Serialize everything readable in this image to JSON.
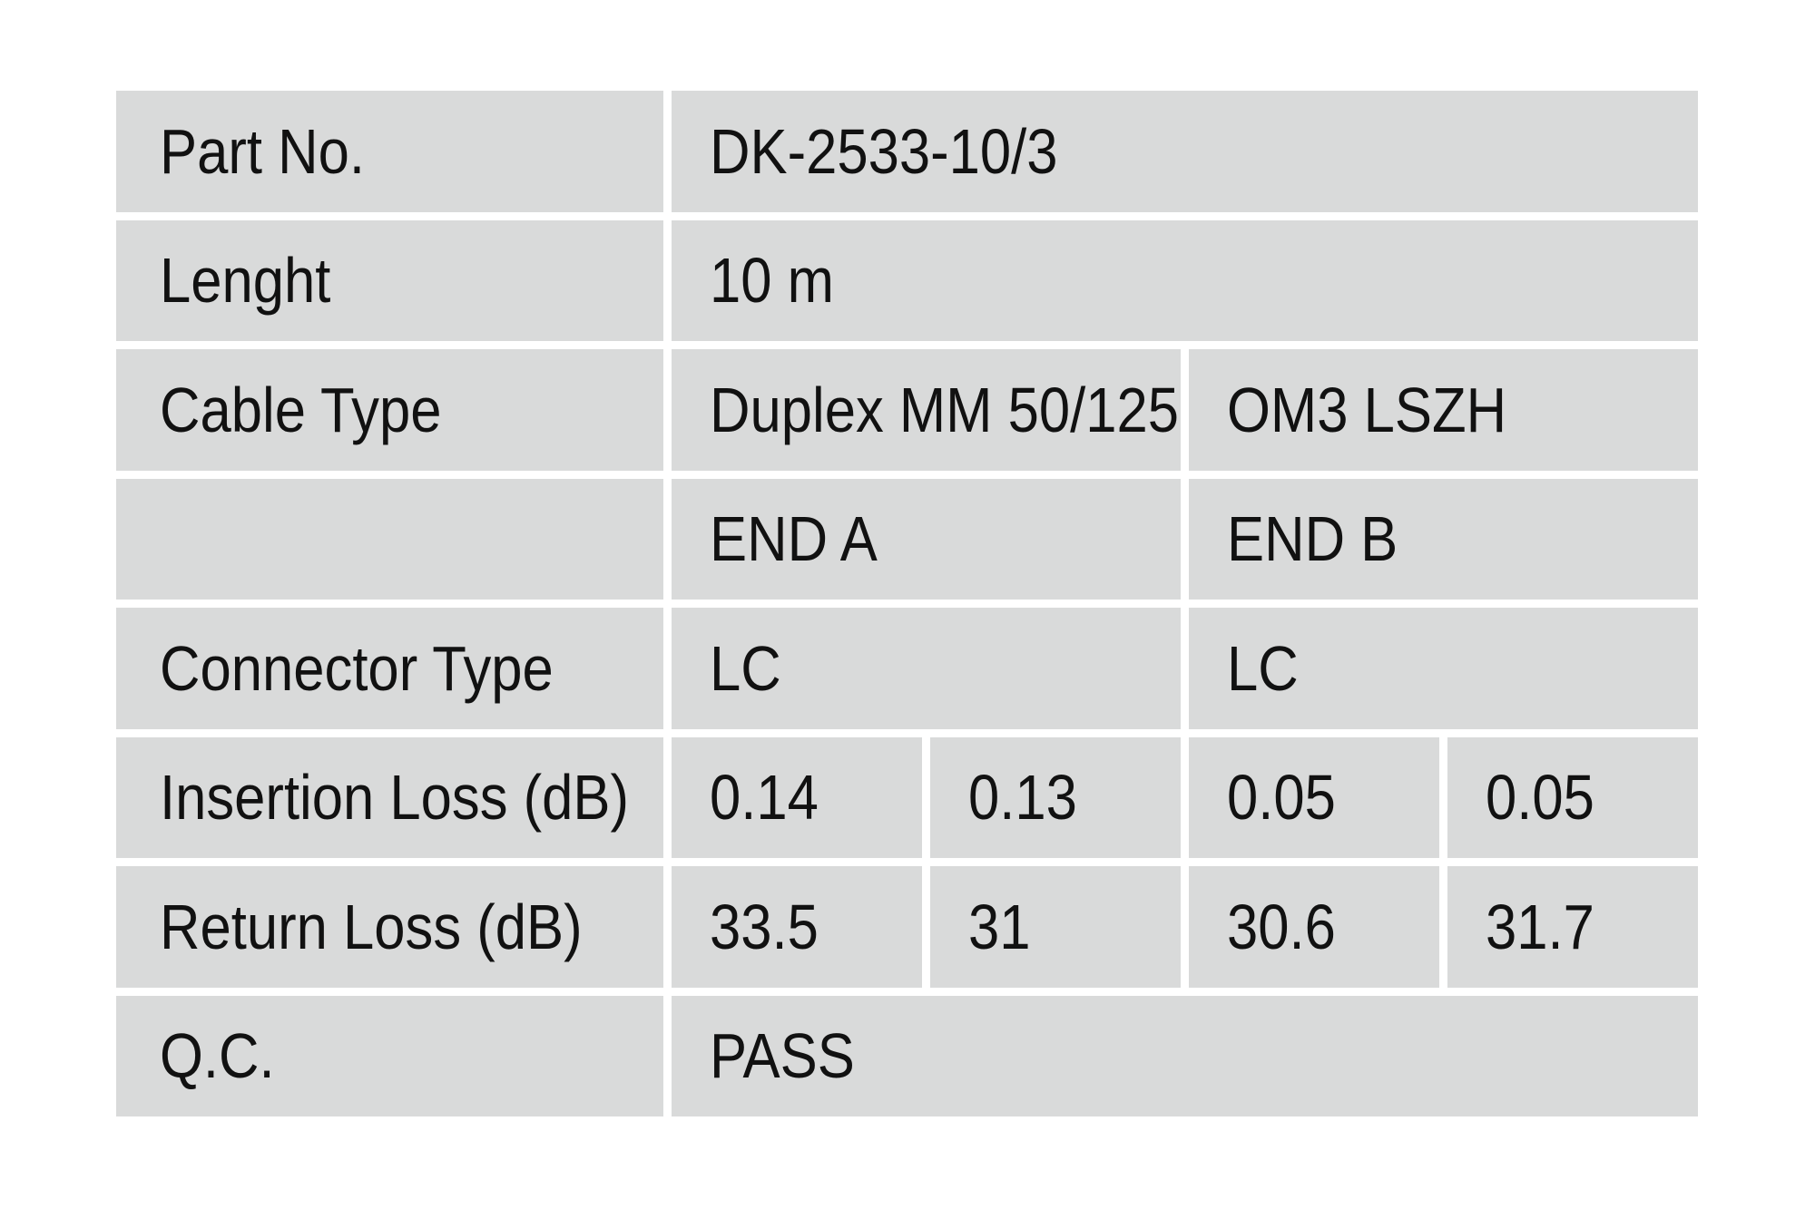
{
  "colors": {
    "background": "#ffffff",
    "cell_fill": "#d9dada",
    "text": "#111111"
  },
  "table": {
    "columns": 5,
    "rows": [
      {
        "label": "Part No.",
        "cells": [
          {
            "text": "DK-2533-10/3",
            "span": 4
          }
        ]
      },
      {
        "label": "Lenght",
        "cells": [
          {
            "text": "10 m",
            "span": 4
          }
        ]
      },
      {
        "label": "Cable Type",
        "cells": [
          {
            "text": "Duplex MM 50/125",
            "span": 2
          },
          {
            "text": "OM3 LSZH",
            "span": 2
          }
        ]
      },
      {
        "label": "",
        "cells": [
          {
            "text": "END A",
            "span": 2
          },
          {
            "text": "END B",
            "span": 2
          }
        ]
      },
      {
        "label": "Connector Type",
        "cells": [
          {
            "text": "LC",
            "span": 2
          },
          {
            "text": "LC",
            "span": 2
          }
        ]
      },
      {
        "label": "Insertion Loss (dB)",
        "cells": [
          {
            "text": "0.14",
            "span": 1
          },
          {
            "text": "0.13",
            "span": 1
          },
          {
            "text": "0.05",
            "span": 1
          },
          {
            "text": "0.05",
            "span": 1
          }
        ]
      },
      {
        "label": "Return Loss (dB)",
        "cells": [
          {
            "text": "33.5",
            "span": 1
          },
          {
            "text": "31",
            "span": 1
          },
          {
            "text": "30.6",
            "span": 1
          },
          {
            "text": "31.7",
            "span": 1
          }
        ]
      },
      {
        "label": "Q.C.",
        "cells": [
          {
            "text": "PASS",
            "span": 4
          }
        ]
      }
    ]
  }
}
